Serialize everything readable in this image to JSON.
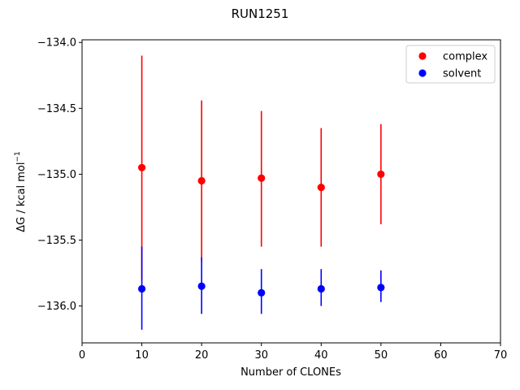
{
  "chart_data": {
    "type": "scatter",
    "title": "RUN1251",
    "xlabel": "Number of CLONEs",
    "ylabel_main": "ΔG / kcal mol",
    "ylabel_sup": "−1",
    "xlim": [
      0,
      70
    ],
    "ylim": [
      -136.28,
      -133.98
    ],
    "xticks": [
      0,
      10,
      20,
      30,
      40,
      50,
      60,
      70
    ],
    "yticks": [
      -134.0,
      -134.5,
      -135.0,
      -135.5,
      -136.0
    ],
    "ytick_labels": [
      "−134.0",
      "−134.5",
      "−135.0",
      "−135.5",
      "−136.0"
    ],
    "grid": false,
    "legend_position": "top-right",
    "series": [
      {
        "name": "complex",
        "color": "#ff0000",
        "points": [
          {
            "x": 10,
            "y": -134.95,
            "err_low": -135.8,
            "err_high": -134.1
          },
          {
            "x": 20,
            "y": -135.05,
            "err_low": -135.66,
            "err_high": -134.44
          },
          {
            "x": 30,
            "y": -135.03,
            "err_low": -135.55,
            "err_high": -134.52
          },
          {
            "x": 40,
            "y": -135.1,
            "err_low": -135.55,
            "err_high": -134.65
          },
          {
            "x": 50,
            "y": -135.0,
            "err_low": -135.38,
            "err_high": -134.62
          }
        ]
      },
      {
        "name": "solvent",
        "color": "#0000ff",
        "points": [
          {
            "x": 10,
            "y": -135.87,
            "err_low": -136.18,
            "err_high": -135.55
          },
          {
            "x": 20,
            "y": -135.85,
            "err_low": -136.06,
            "err_high": -135.63
          },
          {
            "x": 30,
            "y": -135.9,
            "err_low": -136.06,
            "err_high": -135.72
          },
          {
            "x": 40,
            "y": -135.87,
            "err_low": -136.0,
            "err_high": -135.72
          },
          {
            "x": 50,
            "y": -135.86,
            "err_low": -135.97,
            "err_high": -135.73
          }
        ]
      }
    ]
  }
}
